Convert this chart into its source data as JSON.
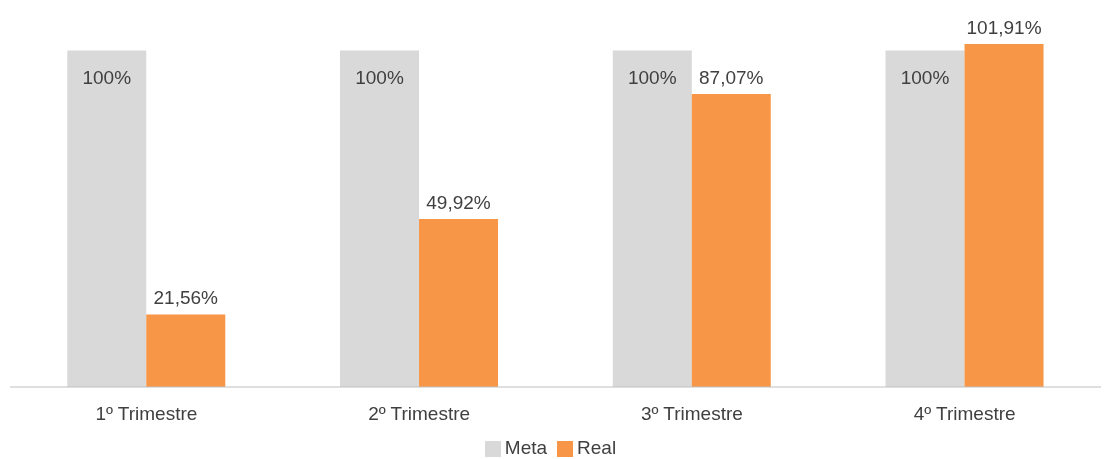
{
  "chart_data": {
    "type": "bar",
    "categories": [
      "1º Trimestre",
      "2º Trimestre",
      "3º Trimestre",
      "4º Trimestre"
    ],
    "series": [
      {
        "name": "Meta",
        "color": "#d9d9d9",
        "values": [
          100,
          100,
          100,
          100
        ],
        "value_labels": [
          "100%",
          "100%",
          "100%",
          "100%"
        ]
      },
      {
        "name": "Real",
        "color": "#f79646",
        "values": [
          21.56,
          49.92,
          87.07,
          101.91
        ],
        "value_labels": [
          "21,56%",
          "49,92%",
          "87,07%",
          "101,91%"
        ]
      }
    ],
    "legend": "bottom",
    "grid": false
  }
}
